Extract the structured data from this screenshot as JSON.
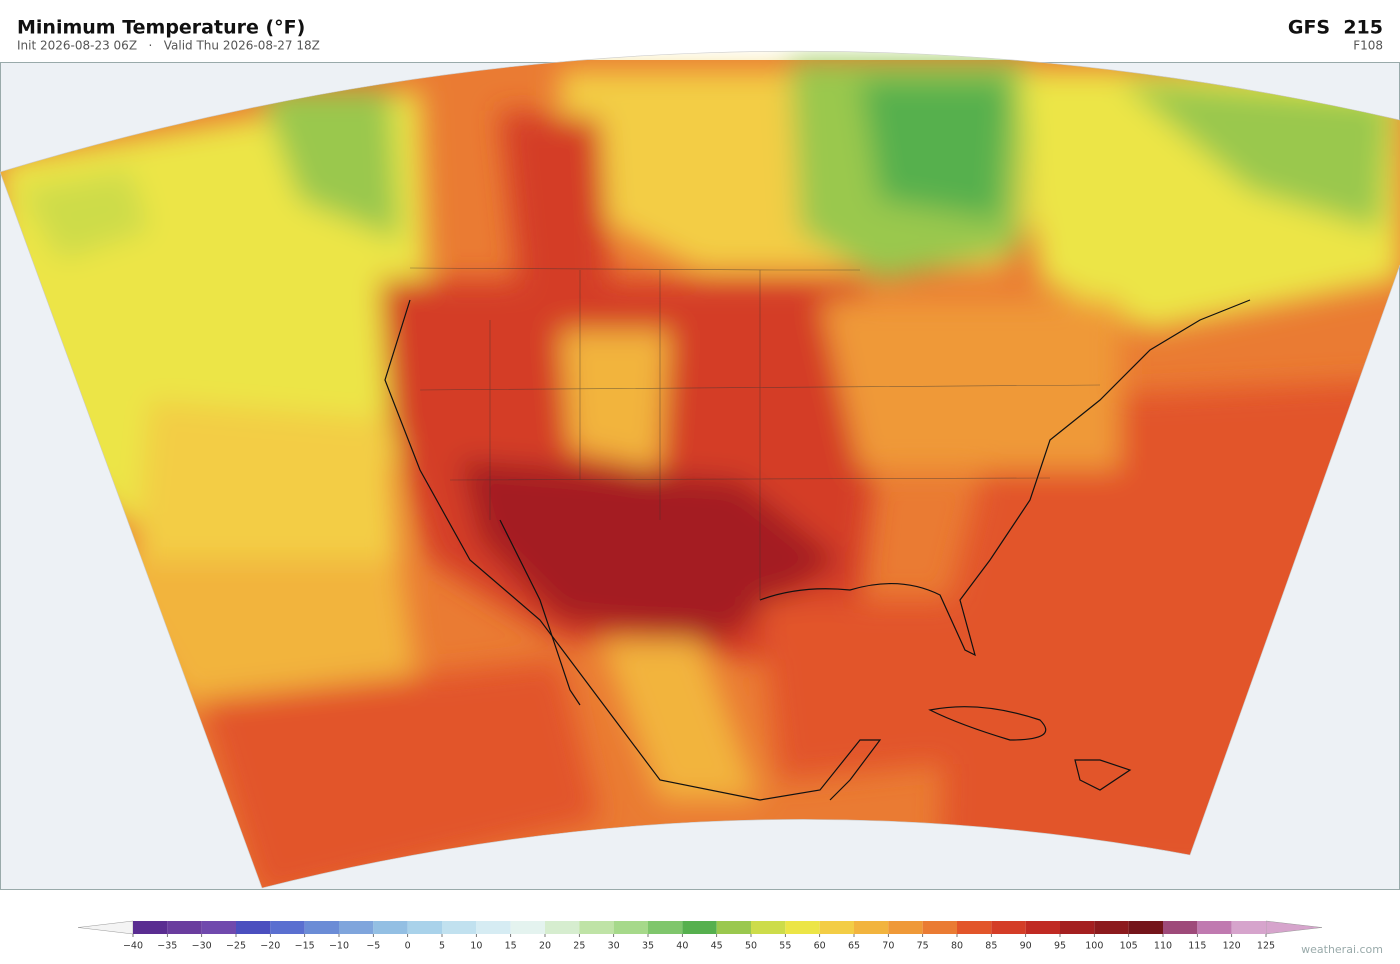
{
  "header": {
    "title": "Minimum Temperature  (°F)",
    "subtitle": "Init 2026-08-23 06Z   ·   Valid Thu 2026-08-27 18Z",
    "model": "GFS  215",
    "forecast_hour": "F108"
  },
  "colorbar": {
    "ticks": [
      {
        "value": -40,
        "label": "−40"
      },
      {
        "value": -35,
        "label": "−35"
      },
      {
        "value": -30,
        "label": "−30"
      },
      {
        "value": -25,
        "label": "−25"
      },
      {
        "value": -20,
        "label": "−20"
      },
      {
        "value": -15,
        "label": "−15"
      },
      {
        "value": -10,
        "label": "−10"
      },
      {
        "value": -5,
        "label": "−5"
      },
      0,
      5,
      10,
      15,
      20,
      25,
      30,
      35,
      40,
      45,
      50,
      55,
      60,
      65,
      70,
      75,
      80,
      85,
      90,
      95,
      100,
      105,
      110,
      115,
      120,
      125
    ],
    "colors": [
      "#5a2d91",
      "#6a3d9e",
      "#7049ad",
      "#4b4fbf",
      "#5a6fd0",
      "#6b8cd6",
      "#7fa5dc",
      "#93bfe3",
      "#a9d2ea",
      "#c1e1ef",
      "#d6ecf3",
      "#e4f3ef",
      "#d6edcf",
      "#bfe3a6",
      "#a6d98a",
      "#7fc66c",
      "#56b04e",
      "#9ac84e",
      "#cddc4a",
      "#ece546",
      "#f3cd45",
      "#f2b43e",
      "#ef9938",
      "#ea7b33",
      "#e2552a",
      "#d43d27",
      "#c02a23",
      "#a41f20",
      "#8c1a1d",
      "#74151a",
      "#9e4a7a",
      "#c07ab0",
      "#d6a4cc"
    ],
    "under_color": "#f4f4f4",
    "over_color": "#d6a4cc"
  },
  "footer": {
    "credit": "weatherai.com"
  }
}
